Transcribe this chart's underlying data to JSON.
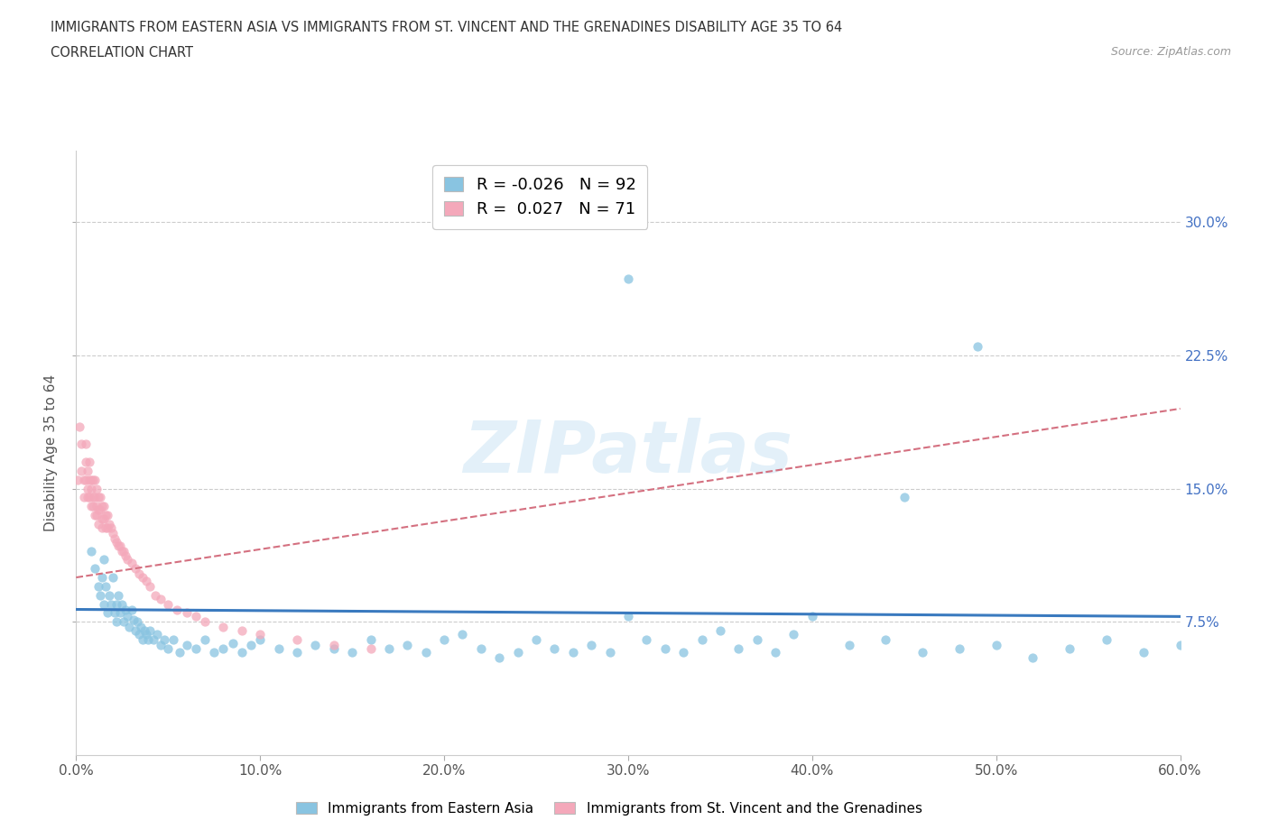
{
  "title_line1": "IMMIGRANTS FROM EASTERN ASIA VS IMMIGRANTS FROM ST. VINCENT AND THE GRENADINES DISABILITY AGE 35 TO 64",
  "title_line2": "CORRELATION CHART",
  "source": "Source: ZipAtlas.com",
  "ylabel": "Disability Age 35 to 64",
  "xlim": [
    0.0,
    0.6
  ],
  "ylim": [
    0.0,
    0.34
  ],
  "xtick_labels": [
    "0.0%",
    "10.0%",
    "20.0%",
    "30.0%",
    "40.0%",
    "50.0%",
    "60.0%"
  ],
  "xtick_values": [
    0.0,
    0.1,
    0.2,
    0.3,
    0.4,
    0.5,
    0.6
  ],
  "ytick_labels": [
    "7.5%",
    "15.0%",
    "22.5%",
    "30.0%"
  ],
  "ytick_values": [
    0.075,
    0.15,
    0.225,
    0.3
  ],
  "watermark": "ZIPatlas",
  "blue_color": "#89c4e1",
  "pink_color": "#f4a8ba",
  "blue_line_color": "#3a7abf",
  "pink_line_color": "#d47080",
  "legend_R1": "-0.026",
  "legend_N1": "92",
  "legend_R2": "0.027",
  "legend_N2": "71",
  "legend_label1": "Immigrants from Eastern Asia",
  "legend_label2": "Immigrants from St. Vincent and the Grenadines",
  "blue_scatter_x": [
    0.008,
    0.01,
    0.012,
    0.013,
    0.014,
    0.015,
    0.015,
    0.016,
    0.017,
    0.018,
    0.019,
    0.02,
    0.021,
    0.022,
    0.022,
    0.023,
    0.024,
    0.025,
    0.026,
    0.027,
    0.028,
    0.029,
    0.03,
    0.031,
    0.032,
    0.033,
    0.034,
    0.035,
    0.036,
    0.037,
    0.038,
    0.039,
    0.04,
    0.042,
    0.044,
    0.046,
    0.048,
    0.05,
    0.053,
    0.056,
    0.06,
    0.065,
    0.07,
    0.075,
    0.08,
    0.085,
    0.09,
    0.095,
    0.1,
    0.11,
    0.12,
    0.13,
    0.14,
    0.15,
    0.16,
    0.17,
    0.18,
    0.19,
    0.2,
    0.21,
    0.22,
    0.23,
    0.24,
    0.25,
    0.26,
    0.27,
    0.28,
    0.29,
    0.3,
    0.31,
    0.32,
    0.33,
    0.34,
    0.35,
    0.36,
    0.37,
    0.38,
    0.39,
    0.4,
    0.42,
    0.44,
    0.46,
    0.48,
    0.5,
    0.52,
    0.54,
    0.56,
    0.58,
    0.6,
    0.3,
    0.45,
    0.49
  ],
  "blue_scatter_y": [
    0.115,
    0.105,
    0.095,
    0.09,
    0.1,
    0.085,
    0.11,
    0.095,
    0.08,
    0.09,
    0.085,
    0.1,
    0.08,
    0.085,
    0.075,
    0.09,
    0.08,
    0.085,
    0.075,
    0.082,
    0.078,
    0.072,
    0.082,
    0.076,
    0.07,
    0.075,
    0.068,
    0.072,
    0.065,
    0.07,
    0.068,
    0.065,
    0.07,
    0.065,
    0.068,
    0.062,
    0.065,
    0.06,
    0.065,
    0.058,
    0.062,
    0.06,
    0.065,
    0.058,
    0.06,
    0.063,
    0.058,
    0.062,
    0.065,
    0.06,
    0.058,
    0.062,
    0.06,
    0.058,
    0.065,
    0.06,
    0.062,
    0.058,
    0.065,
    0.068,
    0.06,
    0.055,
    0.058,
    0.065,
    0.06,
    0.058,
    0.062,
    0.058,
    0.078,
    0.065,
    0.06,
    0.058,
    0.065,
    0.07,
    0.06,
    0.065,
    0.058,
    0.068,
    0.078,
    0.062,
    0.065,
    0.058,
    0.06,
    0.062,
    0.055,
    0.06,
    0.065,
    0.058,
    0.062,
    0.268,
    0.145,
    0.23
  ],
  "pink_scatter_x": [
    0.001,
    0.002,
    0.003,
    0.003,
    0.004,
    0.004,
    0.005,
    0.005,
    0.005,
    0.006,
    0.006,
    0.006,
    0.007,
    0.007,
    0.007,
    0.008,
    0.008,
    0.008,
    0.009,
    0.009,
    0.009,
    0.01,
    0.01,
    0.01,
    0.011,
    0.011,
    0.011,
    0.012,
    0.012,
    0.012,
    0.013,
    0.013,
    0.014,
    0.014,
    0.014,
    0.015,
    0.015,
    0.016,
    0.016,
    0.017,
    0.017,
    0.018,
    0.019,
    0.02,
    0.021,
    0.022,
    0.023,
    0.024,
    0.025,
    0.026,
    0.027,
    0.028,
    0.03,
    0.032,
    0.034,
    0.036,
    0.038,
    0.04,
    0.043,
    0.046,
    0.05,
    0.055,
    0.06,
    0.065,
    0.07,
    0.08,
    0.09,
    0.1,
    0.12,
    0.14,
    0.16
  ],
  "pink_scatter_y": [
    0.155,
    0.185,
    0.175,
    0.16,
    0.155,
    0.145,
    0.175,
    0.165,
    0.155,
    0.16,
    0.15,
    0.145,
    0.165,
    0.155,
    0.145,
    0.155,
    0.15,
    0.14,
    0.155,
    0.145,
    0.14,
    0.155,
    0.145,
    0.135,
    0.15,
    0.14,
    0.135,
    0.145,
    0.138,
    0.13,
    0.145,
    0.138,
    0.14,
    0.133,
    0.128,
    0.14,
    0.133,
    0.135,
    0.128,
    0.135,
    0.128,
    0.13,
    0.128,
    0.125,
    0.122,
    0.12,
    0.118,
    0.118,
    0.115,
    0.115,
    0.112,
    0.11,
    0.108,
    0.105,
    0.102,
    0.1,
    0.098,
    0.095,
    0.09,
    0.088,
    0.085,
    0.082,
    0.08,
    0.078,
    0.075,
    0.072,
    0.07,
    0.068,
    0.065,
    0.062,
    0.06
  ],
  "blue_trend_x0": 0.0,
  "blue_trend_x1": 0.6,
  "blue_trend_y0": 0.082,
  "blue_trend_y1": 0.078,
  "pink_trend_x0": 0.0,
  "pink_trend_x1": 0.6,
  "pink_trend_y0": 0.1,
  "pink_trend_y1": 0.195
}
